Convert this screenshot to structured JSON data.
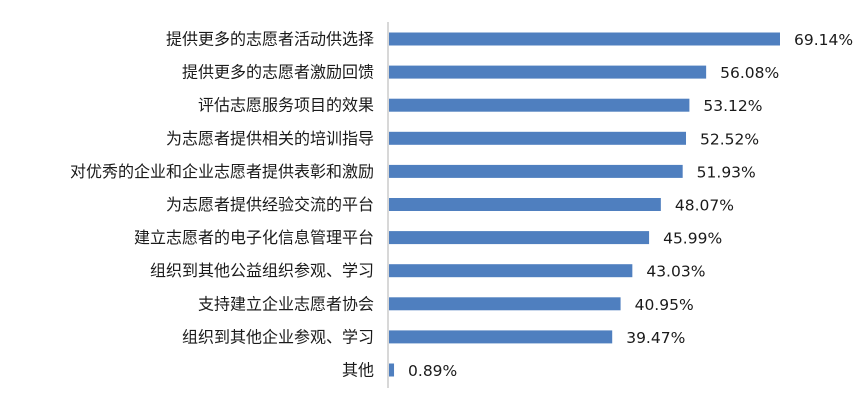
{
  "chart_data": {
    "type": "bar",
    "orientation": "horizontal",
    "title": "",
    "xlabel": "",
    "ylabel": "",
    "grid": false,
    "legend": "none",
    "value_suffix": "%",
    "bar_color": "#4f7fbf",
    "axis_color": "#bfbfbf",
    "categories": [
      "提供更多的志愿者活动供选择",
      "提供更多的志愿者激励回馈",
      "评估志愿服务项目的效果",
      "为志愿者提供相关的培训指导",
      "对优秀的企业和企业志愿者提供表彰和激励",
      "为志愿者提供经验交流的平台",
      "建立志愿者的电子化信息管理平台",
      "组织到其他公益组织参观、学习",
      "支持建立企业志愿者协会",
      "组织到其他企业参观、学习",
      "其他"
    ],
    "values": [
      69.14,
      56.08,
      53.12,
      52.52,
      51.93,
      48.07,
      45.99,
      43.03,
      40.95,
      39.47,
      0.89
    ],
    "value_labels": [
      "69.14%",
      "56.08%",
      "53.12%",
      "52.52%",
      "51.93%",
      "48.07%",
      "45.99%",
      "43.03%",
      "40.95%",
      "39.47%",
      "0.89%"
    ],
    "xlim": [
      0,
      69.14
    ]
  }
}
